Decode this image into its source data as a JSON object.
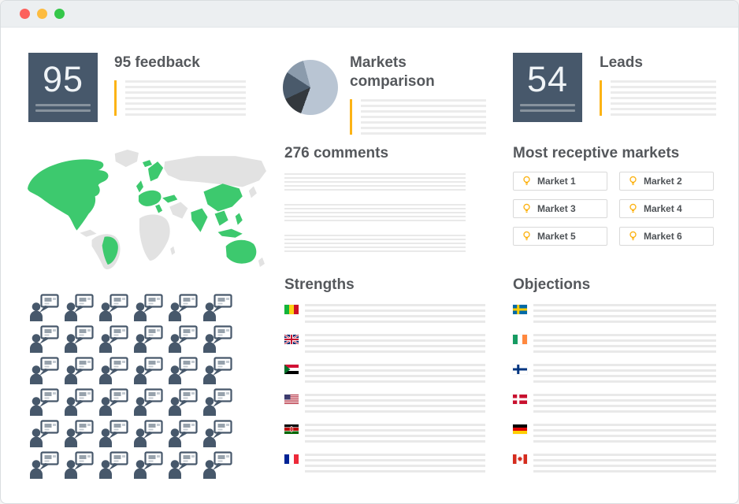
{
  "window": {
    "titlebar": {
      "close_color": "#FC615D",
      "minimize_color": "#FDBC40",
      "zoom_color": "#34C749"
    }
  },
  "colors": {
    "slate": "#47586B",
    "accent_yellow": "#FCB315",
    "placeholder_line": "#ECECEC",
    "map_green": "#3DC96E",
    "map_gray": "#E2E2E2",
    "heading": "#55585C"
  },
  "cards": {
    "feedback": {
      "value": "95",
      "title": "95 feedback"
    },
    "markets": {
      "title": "Markets comparison"
    },
    "leads": {
      "value": "54",
      "title": "Leads"
    }
  },
  "comments": {
    "title": "276 comments"
  },
  "receptive_markets": {
    "title": "Most receptive markets",
    "items": [
      "Market 1",
      "Market 2",
      "Market 3",
      "Market 4",
      "Market 5",
      "Market 6"
    ]
  },
  "strengths": {
    "title": "Strengths",
    "flags": [
      {
        "country": "Mali",
        "type": "v3",
        "colors": [
          "#14B53A",
          "#FCD116",
          "#CE1126"
        ]
      },
      {
        "country": "United Kingdom",
        "type": "uk"
      },
      {
        "country": "Sudan",
        "type": "sudan"
      },
      {
        "country": "United States",
        "type": "usa"
      },
      {
        "country": "Kenya",
        "type": "kenya"
      },
      {
        "country": "France",
        "type": "v3",
        "colors": [
          "#002395",
          "#FFFFFF",
          "#ED2939"
        ]
      }
    ]
  },
  "objections": {
    "title": "Objections",
    "flags": [
      {
        "country": "Sweden",
        "type": "nordic",
        "bg": "#006AA7",
        "cross": "#FECC00"
      },
      {
        "country": "Ireland",
        "type": "v3",
        "colors": [
          "#169B62",
          "#FFFFFF",
          "#FF883E"
        ]
      },
      {
        "country": "Finland",
        "type": "nordic",
        "bg": "#FFFFFF",
        "cross": "#003580"
      },
      {
        "country": "Denmark",
        "type": "nordic",
        "bg": "#C8102E",
        "cross": "#FFFFFF"
      },
      {
        "country": "Germany",
        "type": "h3",
        "colors": [
          "#000000",
          "#DD0000",
          "#FFCE00"
        ]
      },
      {
        "country": "Canada",
        "type": "canada"
      }
    ]
  },
  "crowd": {
    "rows": 6,
    "cols": 6
  },
  "map": {
    "highlighted_regions": [
      "North America",
      "Iceland",
      "Scandinavia",
      "United Kingdom",
      "Western Europe",
      "Italy",
      "Turkey",
      "India",
      "China",
      "Southeast Asia",
      "Philippines",
      "Indonesia",
      "Brazil",
      "Australia"
    ]
  },
  "chart_data": {
    "type": "pie",
    "title": "Markets comparison",
    "legend": "none",
    "start_angle_deg": -15,
    "slices": [
      {
        "label": "slice-1",
        "pct": 59.7,
        "color": "#B9C5D3"
      },
      {
        "label": "slice-2",
        "pct": 12.5,
        "color": "#33383D"
      },
      {
        "label": "slice-3",
        "pct": 16.1,
        "color": "#4A5A6B"
      },
      {
        "label": "slice-4",
        "pct": 11.7,
        "color": "#8B9BAC"
      }
    ]
  }
}
